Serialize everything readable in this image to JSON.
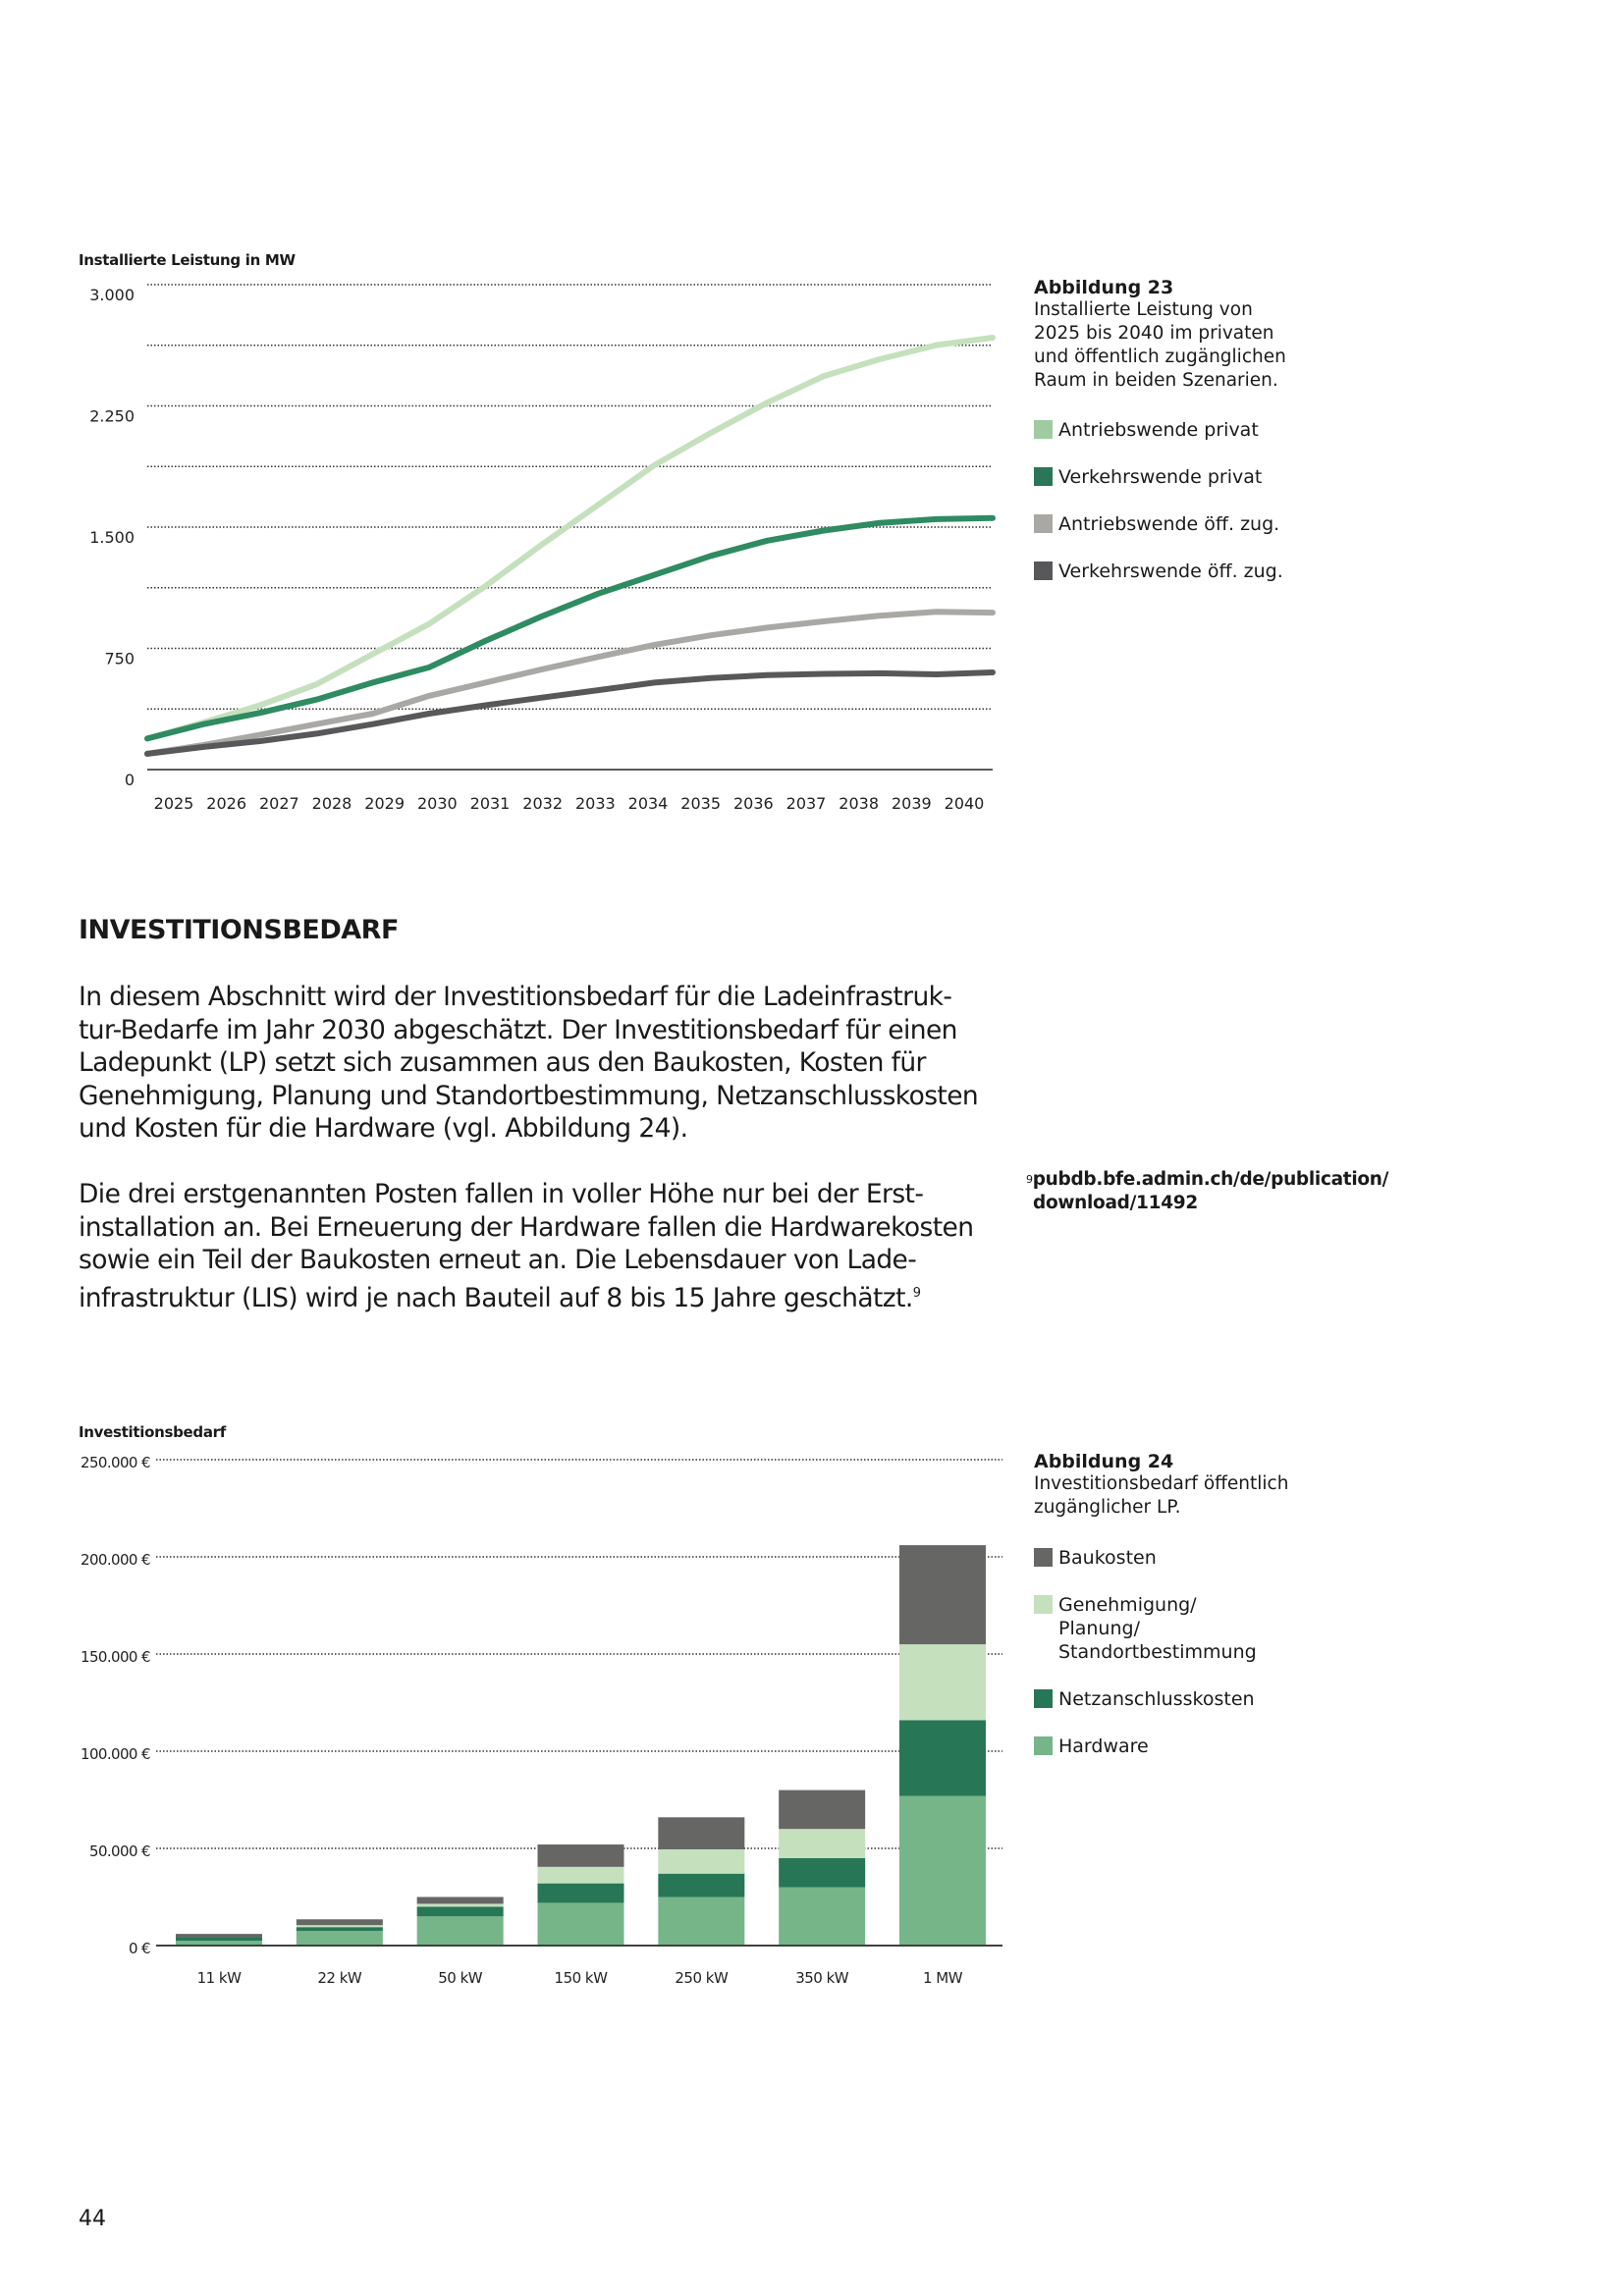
{
  "figure23": {
    "caption_title": "Abbildung 23",
    "caption_lines": [
      "Installierte Leistung von",
      "2025 bis 2040 im privaten",
      "und öffentlich zugänglichen",
      "Raum in beiden Szenarien."
    ]
  },
  "figure24": {
    "caption_title": "Abbildung 24",
    "caption_lines": [
      "Investitionsbedarf öffentlich",
      "zugänglicher LP."
    ]
  },
  "section": {
    "heading": "INVESTITIONSBEDARF",
    "paragraph1_lines": [
      "In diesem Abschnitt wird der Investitionsbedarf für die Ladeinfrastruk-",
      "tur-Bedarfe im Jahr 2030 abgeschätzt. Der Investitionsbedarf für einen",
      "Ladepunkt (LP) setzt sich zusammen aus den Baukosten, Kosten für",
      "Genehmigung, Planung und Standortbestimmung, Netzanschlusskosten",
      "und Kosten für die Hardware (vgl. Abbildung 24)."
    ],
    "paragraph2_lines": [
      "Die drei erstgenannten Posten fallen in voller Höhe nur bei der Erst-",
      "installation an. Bei Erneuerung der Hardware fallen die Hardwarekosten",
      "sowie ein Teil der Baukosten erneut an. Die Lebensdauer von Lade-",
      "infrastruktur (LIS) wird je nach Bauteil auf 8 bis 15 Jahre geschätzt."
    ],
    "footnote_marker": "9"
  },
  "footnote": {
    "marker": "9",
    "lines": [
      "pubdb.bfe.admin.ch/de/publication/",
      "download/11492"
    ]
  },
  "page_number": "44",
  "chart_data": [
    {
      "type": "line",
      "ylabel": "Installierte Leistung in MW",
      "xlabel": "",
      "x": [
        2025,
        2026,
        2027,
        2028,
        2029,
        2030,
        2031,
        2032,
        2033,
        2034,
        2035,
        2036,
        2037,
        2038,
        2039,
        2040
      ],
      "x_tick_labels": [
        "2025",
        "2026",
        "2027",
        "2028",
        "2029",
        "2030",
        "2031",
        "2032",
        "2033",
        "2034",
        "2035",
        "2036",
        "2037",
        "2038",
        "2039",
        "2040"
      ],
      "ylim": [
        0,
        3000
      ],
      "y_ticks": [
        0,
        750,
        1500,
        2250,
        3000
      ],
      "y_tick_labels": [
        "0",
        "750",
        "1.500",
        "2.250",
        "3.000"
      ],
      "gridlines_every": 375,
      "grid": true,
      "legend_placement": "right",
      "series": [
        {
          "name": "Antriebswende privat",
          "color": "#c5e0bd",
          "swatch": "#9fcba0",
          "values": [
            192,
            292,
            398,
            527,
            714,
            901,
            1135,
            1392,
            1638,
            1884,
            2083,
            2270,
            2434,
            2539,
            2626,
            2672
          ]
        },
        {
          "name": "Verkehrswende privat",
          "color": "#2e8b62",
          "swatch": "#2a7656",
          "values": [
            192,
            281,
            351,
            433,
            538,
            632,
            796,
            948,
            1088,
            1205,
            1322,
            1416,
            1479,
            1526,
            1549,
            1556
          ]
        },
        {
          "name": "Antriebswende öff. zug.",
          "color": "#aaa8a5",
          "swatch": "#aaa8a5",
          "values": [
            98,
            152,
            215,
            281,
            346,
            456,
            538,
            620,
            697,
            772,
            831,
            878,
            917,
            952,
            976,
            971
          ]
        },
        {
          "name": "Verkehrswende öff. zug.",
          "color": "#58585a",
          "swatch": "#58585a",
          "values": [
            98,
            140,
            176,
            222,
            281,
            346,
            398,
            445,
            491,
            538,
            566,
            585,
            592,
            596,
            589,
            601
          ]
        }
      ]
    },
    {
      "type": "bar",
      "stacked": true,
      "ylabel": "Investitionsbedarf",
      "xlabel": "",
      "categories": [
        "11 kW",
        "22 kW",
        "50 kW",
        "150 kW",
        "250 kW",
        "350 kW",
        "1 MW"
      ],
      "ylim": [
        0,
        250000
      ],
      "y_ticks": [
        0,
        50000,
        100000,
        150000,
        200000,
        250000
      ],
      "y_tick_labels": [
        "0 €",
        "50.000 €",
        "100.000 €",
        "150.000 €",
        "200.000 €",
        "250.000 €"
      ],
      "grid": true,
      "legend_placement": "right",
      "series": [
        {
          "name": "Hardware",
          "color": "#76b588",
          "values": [
            2500,
            7500,
            15000,
            22000,
            25000,
            30000,
            77000
          ]
        },
        {
          "name": "Netzanschlusskosten",
          "color": "#277656",
          "values": [
            2000,
            2000,
            5000,
            10000,
            12000,
            15000,
            39000
          ]
        },
        {
          "name": "Genehmigung/ Planung/ Standortbestimmung",
          "name_lines": [
            "Genehmigung/",
            "Planung/",
            "Standortbestimmung"
          ],
          "color": "#c5e0bd",
          "values": [
            0,
            1000,
            1500,
            8500,
            12500,
            15000,
            39000
          ]
        },
        {
          "name": "Baukosten",
          "color": "#666664",
          "values": [
            1500,
            3000,
            3500,
            11500,
            16500,
            20000,
            51000
          ]
        }
      ]
    }
  ]
}
